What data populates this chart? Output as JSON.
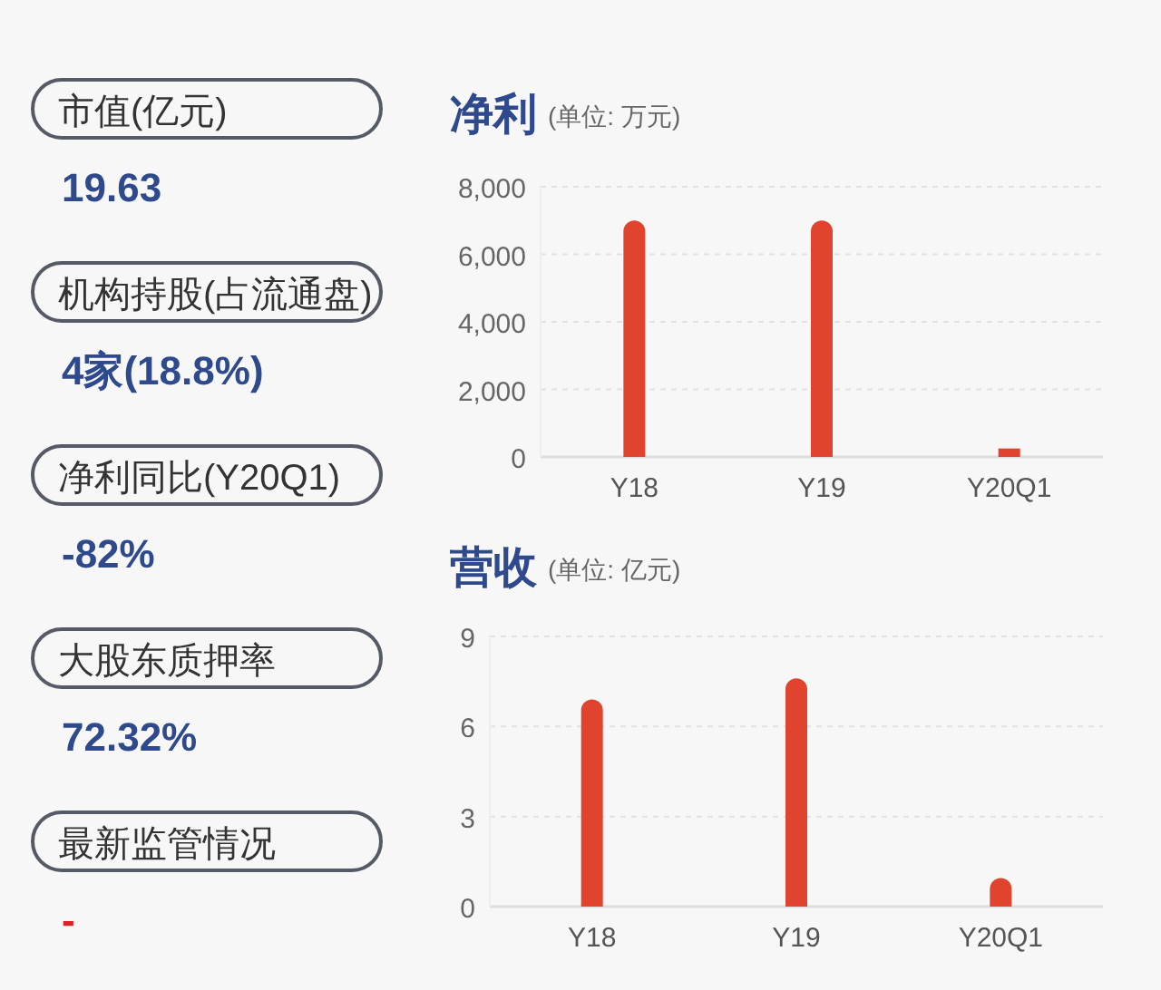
{
  "chart_data": [
    {
      "type": "other",
      "annotations": [
        "市值(亿元)",
        "19.63",
        "机构持股(占流通盘)",
        "4家(18.8%)",
        "净利同比(Y20Q1)",
        "-82%",
        "大股东质押率",
        "72.32%",
        "最新监管情况",
        "-"
      ]
    },
    {
      "type": "bar",
      "title": "净利",
      "subtitle": "(单位: 万元)",
      "categories": [
        "Y18",
        "Y19",
        "Y20Q1"
      ],
      "values": [
        7000,
        7000,
        250
      ],
      "color": "#e0442e",
      "ylim": [
        0,
        8000
      ],
      "yticks": [
        {
          "value": 0,
          "label": "0"
        },
        {
          "value": 2000,
          "label": "2,000"
        },
        {
          "value": 4000,
          "label": "4,000"
        },
        {
          "value": 6000,
          "label": "6,000"
        },
        {
          "value": 8000,
          "label": "8,000"
        }
      ],
      "grid": "y"
    },
    {
      "type": "bar",
      "title": "营收",
      "subtitle": "(单位: 亿元)",
      "categories": [
        "Y18",
        "Y19",
        "Y20Q1"
      ],
      "values": [
        6.9,
        7.6,
        0.95
      ],
      "color": "#e0442e",
      "ylim": [
        0,
        9
      ],
      "yticks": [
        0,
        3,
        6,
        9
      ],
      "grid": "y"
    }
  ]
}
